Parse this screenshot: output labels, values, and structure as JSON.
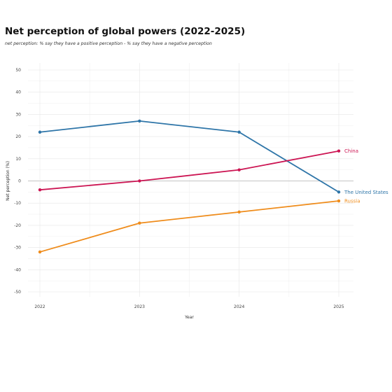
{
  "chart_data": {
    "type": "line",
    "title": "Net perception of global powers (2022-2025)",
    "subtitle": "net perception: % say they have a positive perception - % say they have a negative perception",
    "xlabel": "Year",
    "ylabel": "Net perception (%)",
    "x": [
      2022,
      2023,
      2024,
      2025
    ],
    "x_tick_labels": [
      "2022",
      "2023",
      "2024",
      "2025"
    ],
    "ylim": [
      -50,
      50
    ],
    "y_ticks": [
      -50,
      -40,
      -30,
      -20,
      -10,
      0,
      10,
      20,
      30,
      40,
      50
    ],
    "grid": true,
    "legend": "direct labels at line ends",
    "series": [
      {
        "name": "The United States",
        "color": "#2e75a8",
        "values": [
          22,
          27,
          22,
          -5
        ]
      },
      {
        "name": "China",
        "color": "#cc1553",
        "values": [
          -4,
          0,
          5,
          13.5
        ]
      },
      {
        "name": "Russia",
        "color": "#ef8c1b",
        "values": [
          -32,
          -19,
          -14,
          -9
        ]
      }
    ]
  }
}
